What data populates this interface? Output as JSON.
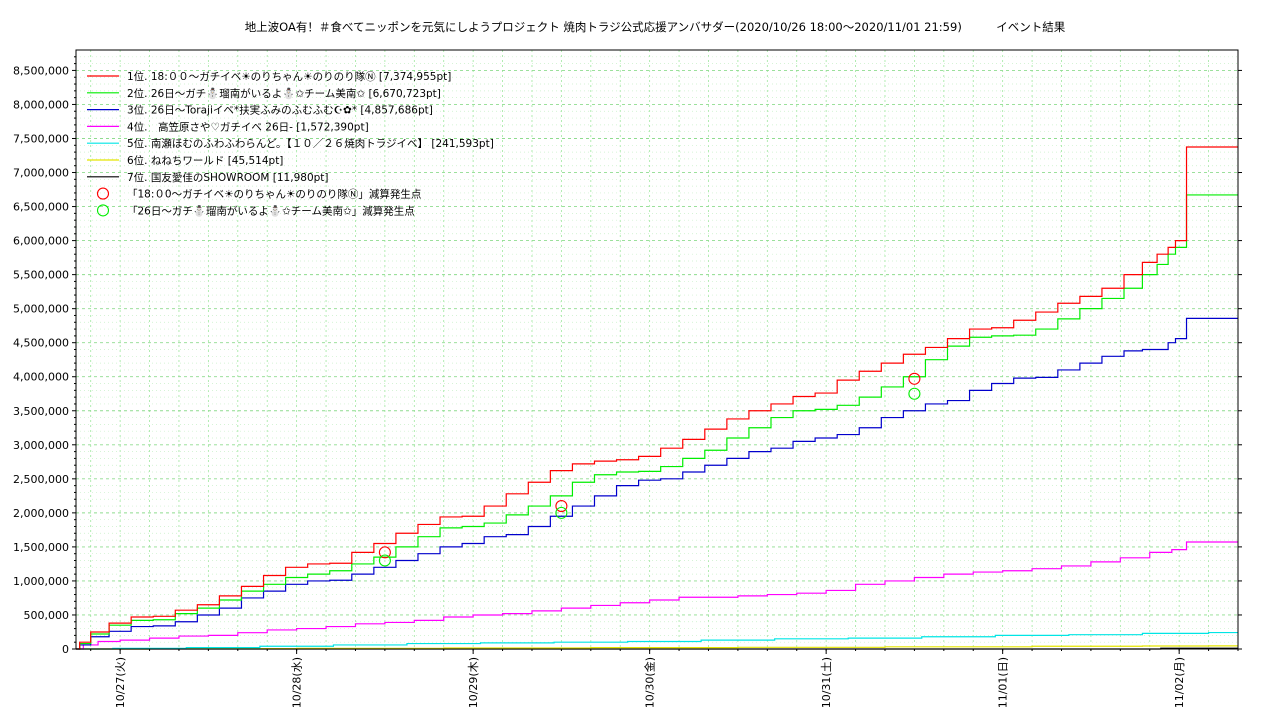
{
  "chart_data": {
    "type": "line",
    "title": "地上波OA有！＃食べてニッポンを元気にしようプロジェクト 焼肉トラジ公式応援アンバサダー(2020/10/26 18:00～2020/11/01 21:59)　　　イベント結果",
    "xlabel": "",
    "ylabel": "",
    "ylim": [
      0,
      8800000
    ],
    "yticks": [
      0,
      500000,
      1000000,
      1500000,
      2000000,
      2500000,
      3000000,
      3500000,
      4000000,
      4500000,
      5000000,
      5500000,
      6000000,
      6500000,
      7000000,
      7500000,
      8000000,
      8500000
    ],
    "ytick_labels": [
      "0",
      "500,000",
      "1,000,000",
      "1,500,000",
      "2,000,000",
      "2,500,000",
      "3,000,000",
      "3,500,000",
      "4,000,000",
      "4,500,000",
      "5,000,000",
      "5,500,000",
      "6,000,000",
      "6,500,000",
      "7,000,000",
      "7,500,000",
      "8,000,000",
      "8,500,000"
    ],
    "xlim": [
      0,
      158.0
    ],
    "xticks": [
      6.0,
      30.0,
      54.0,
      78.0,
      102.0,
      126.0,
      150.0
    ],
    "xtick_labels": [
      "10/27(火)",
      "10/28(水)",
      "10/29(木)",
      "10/30(金)",
      "10/31(土)",
      "11/01(日)",
      "11/02(月)"
    ],
    "grid": true,
    "legend_position": "top-left",
    "series": [
      {
        "name": "1位. 18:００～ガチイベ☀のりちゃん☀のりのり隊Ⓝ [7,374,955pt]",
        "color": "#ff0000",
        "x": [
          0,
          1,
          3,
          6,
          9,
          12,
          15,
          18,
          21,
          24,
          27,
          30,
          33,
          36,
          39,
          42,
          45,
          48,
          51,
          54,
          57,
          60,
          63,
          66,
          69,
          72,
          75,
          78,
          81,
          84,
          87,
          90,
          93,
          96,
          99,
          102,
          105,
          108,
          111,
          114,
          117,
          120,
          123,
          126,
          129,
          132,
          135,
          138,
          141,
          144,
          146,
          148,
          149,
          150,
          152,
          158
        ],
        "y": [
          0,
          100000,
          250000,
          380000,
          470000,
          480000,
          570000,
          650000,
          780000,
          920000,
          1080000,
          1200000,
          1250000,
          1260000,
          1420000,
          1550000,
          1700000,
          1830000,
          1940000,
          1950000,
          2100000,
          2280000,
          2450000,
          2620000,
          2720000,
          2760000,
          2780000,
          2830000,
          2950000,
          3080000,
          3230000,
          3380000,
          3500000,
          3600000,
          3710000,
          3760000,
          3950000,
          4080000,
          4200000,
          4330000,
          4430000,
          4560000,
          4700000,
          4720000,
          4830000,
          4950000,
          5080000,
          5180000,
          5300000,
          5500000,
          5680000,
          5800000,
          5900000,
          6000000,
          7374955,
          7374955
        ]
      },
      {
        "name": "2位. 26日～ガチ⛄瑠南がいるよ⛄✩チーム美南✩ [6,670,723pt]",
        "color": "#00ee00",
        "x": [
          0,
          1,
          3,
          6,
          9,
          12,
          15,
          18,
          21,
          24,
          27,
          30,
          33,
          36,
          39,
          42,
          45,
          48,
          51,
          54,
          57,
          60,
          63,
          66,
          69,
          72,
          75,
          78,
          81,
          84,
          87,
          90,
          93,
          96,
          99,
          102,
          105,
          108,
          111,
          114,
          117,
          120,
          123,
          126,
          129,
          132,
          135,
          138,
          141,
          144,
          146,
          148,
          149,
          150,
          152,
          158
        ],
        "y": [
          0,
          80000,
          220000,
          350000,
          420000,
          430000,
          520000,
          600000,
          720000,
          850000,
          950000,
          1050000,
          1100000,
          1150000,
          1250000,
          1350000,
          1500000,
          1650000,
          1780000,
          1800000,
          1850000,
          1970000,
          2100000,
          2250000,
          2450000,
          2560000,
          2600000,
          2610000,
          2680000,
          2800000,
          2920000,
          3100000,
          3250000,
          3400000,
          3500000,
          3520000,
          3580000,
          3700000,
          3850000,
          4000000,
          4250000,
          4450000,
          4580000,
          4600000,
          4610000,
          4700000,
          4850000,
          5000000,
          5150000,
          5300000,
          5500000,
          5650000,
          5800000,
          5900000,
          6670723,
          6670723
        ]
      },
      {
        "name": "3位. 26日～Torajiイベ*扶実ふみのふむふむ☪✿* [4,857,686pt]",
        "color": "#0000cc",
        "x": [
          0,
          1,
          3,
          6,
          9,
          12,
          15,
          18,
          21,
          24,
          27,
          30,
          33,
          36,
          39,
          42,
          45,
          48,
          51,
          54,
          57,
          60,
          63,
          66,
          69,
          72,
          75,
          78,
          81,
          84,
          87,
          90,
          93,
          96,
          99,
          102,
          105,
          108,
          111,
          114,
          117,
          120,
          123,
          126,
          129,
          132,
          135,
          138,
          141,
          144,
          146,
          148,
          149,
          150,
          152,
          158
        ],
        "y": [
          0,
          60000,
          180000,
          260000,
          330000,
          340000,
          400000,
          500000,
          600000,
          750000,
          850000,
          950000,
          1000000,
          1010000,
          1100000,
          1200000,
          1300000,
          1400000,
          1500000,
          1550000,
          1650000,
          1680000,
          1800000,
          1950000,
          2100000,
          2250000,
          2400000,
          2480000,
          2500000,
          2600000,
          2700000,
          2800000,
          2900000,
          2950000,
          3050000,
          3100000,
          3150000,
          3250000,
          3400000,
          3500000,
          3600000,
          3650000,
          3800000,
          3900000,
          3980000,
          3990000,
          4100000,
          4200000,
          4300000,
          4380000,
          4400000,
          4400000,
          4500000,
          4560000,
          4857686,
          4857686
        ]
      },
      {
        "name": "4位.　高笠原さや♡ガチイベ 26日- [1,572,390pt]",
        "color": "#ff00ff",
        "x": [
          0,
          2,
          4,
          8,
          12,
          16,
          20,
          24,
          28,
          32,
          36,
          40,
          44,
          48,
          52,
          56,
          60,
          64,
          68,
          72,
          76,
          80,
          84,
          88,
          92,
          96,
          100,
          104,
          108,
          112,
          116,
          120,
          124,
          128,
          132,
          136,
          140,
          144,
          148,
          150,
          152,
          158
        ],
        "y": [
          0,
          60000,
          110000,
          130000,
          160000,
          190000,
          200000,
          240000,
          280000,
          300000,
          330000,
          370000,
          390000,
          420000,
          470000,
          500000,
          520000,
          560000,
          600000,
          640000,
          680000,
          720000,
          760000,
          760000,
          780000,
          800000,
          820000,
          860000,
          950000,
          1000000,
          1050000,
          1100000,
          1130000,
          1150000,
          1180000,
          1220000,
          1280000,
          1340000,
          1420000,
          1460000,
          1572390,
          1572390
        ]
      },
      {
        "name": "5位. 南瀬ほむのふわふわらんど。【１０／２６焼肉トラジイベ】 [241,593pt]",
        "color": "#00e5e5",
        "x": [
          0,
          10,
          20,
          30,
          40,
          50,
          60,
          70,
          80,
          90,
          100,
          110,
          120,
          130,
          140,
          150,
          158
        ],
        "y": [
          0,
          10000,
          20000,
          40000,
          60000,
          80000,
          90000,
          100000,
          110000,
          130000,
          150000,
          160000,
          180000,
          200000,
          210000,
          230000,
          241593
        ]
      },
      {
        "name": "6位. ねねちワールド [45,514pt]",
        "color": "#e5e500",
        "x": [
          0,
          20,
          40,
          60,
          80,
          100,
          120,
          140,
          150,
          158
        ],
        "y": [
          0,
          5000,
          10000,
          15000,
          20000,
          25000,
          32000,
          40000,
          44000,
          45514
        ]
      },
      {
        "name": "7位. 国友愛佳のSHOWROOM [11,980pt]",
        "color": "#000000",
        "x": [
          0,
          40,
          80,
          120,
          145,
          150,
          158
        ],
        "y": [
          0,
          0,
          0,
          0,
          0,
          11980,
          11980
        ]
      }
    ],
    "markers": [
      {
        "name": "「18:０0～ガチイベ☀のりちゃん☀のりのり隊Ⓝ」減算発生点",
        "color": "#ff0000",
        "points": [
          {
            "x": 42,
            "y": 1420000
          },
          {
            "x": 66,
            "y": 2100000
          },
          {
            "x": 114,
            "y": 3970000
          }
        ]
      },
      {
        "name": "「26日～ガチ⛄瑠南がいるよ⛄✩チーム美南✩」減算発生点",
        "color": "#00ee00",
        "points": [
          {
            "x": 42,
            "y": 1300000
          },
          {
            "x": 66,
            "y": 2000000
          },
          {
            "x": 114,
            "y": 3750000
          }
        ]
      }
    ]
  }
}
